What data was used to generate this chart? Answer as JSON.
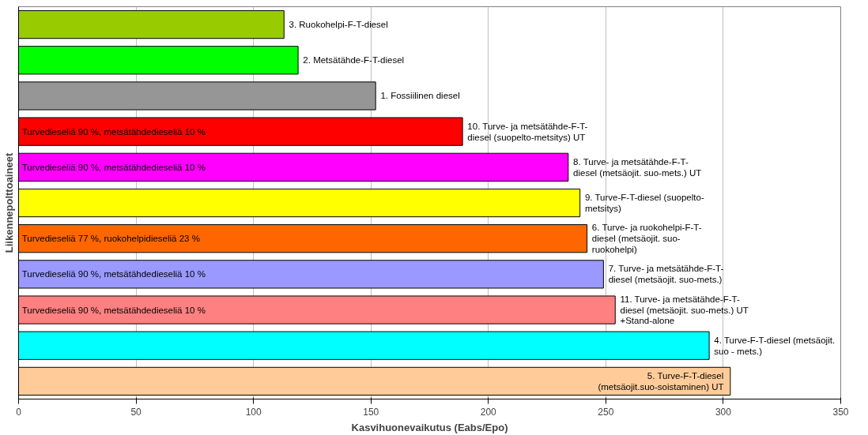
{
  "chart_data": {
    "type": "bar",
    "orientation": "horizontal",
    "xlabel": "Kasvihuonevaikutus (Eabs/Epo)",
    "ylabel": "Liikennepolttoaineet",
    "categories": [
      "3. Ruokohelpi-F-T-diesel",
      "2. Metsätähde-F-T-diesel",
      "1. Fossiilinen diesel",
      "10. Turve- ja metsätähde-F-T-diesel (suopelto-metsitys) UT",
      "8. Turve- ja metsätähde-F-T-diesel (metsäojit. suo-mets.) UT",
      "9. Turve-F-T-diesel (suopelto-metsitys)",
      "6. Turve- ja ruokohelpi-F-T-diesel (metsäojit. suo-ruokohelpi)",
      "7. Turve- ja metsätähde-F-T-diesel (metsäojit. suo-mets.)",
      "11. Turve- ja metsätähde-F-T-diesel (metsäojit. suo-mets.) UT +Stand-alone",
      "4. Turve-F-T-diesel (metsäojit. suo - mets.)",
      "5. Turve-F-T-diesel (metsäojit.suo-soistaminen) UT"
    ],
    "values": [
      113,
      119,
      152,
      189,
      234,
      239,
      242,
      249,
      254,
      294,
      303
    ],
    "colors": [
      "#99cc00",
      "#00ff00",
      "#969696",
      "#ff0000",
      "#ff00ff",
      "#ffff00",
      "#ff6600",
      "#9999ff",
      "#ff8080",
      "#00ffff",
      "#ffcc99"
    ],
    "xlim": [
      0,
      350
    ],
    "xticks": [
      0,
      50,
      100,
      150,
      200,
      250,
      300,
      350
    ],
    "grid": "x",
    "annotations": [
      {
        "text": "Turvedieseliä 90 %, metsätähdedieseliä 10 %",
        "y": "10. Turve- ja metsätähde-F-T-diesel (suopelto-metsitys) UT"
      },
      {
        "text": "Turvedieseliä 90 %, metsätähdedieseliä 10 %",
        "y": "8. Turve- ja metsätähde-F-T-diesel (metsäojit. suo-mets.) UT"
      },
      {
        "text": "Turvedieseliä 77 %, ruokohelpidieseliä 23 %",
        "y": "6. Turve- ja ruokohelpi-F-T-diesel (metsäojit. suo-ruokohelpi)"
      },
      {
        "text": "Turvedieseliä 90 %, metsätähdedieseliä 10 %",
        "y": "7. Turve- ja metsätähde-F-T-diesel (metsäojit. suo-mets.)"
      },
      {
        "text": "Turvedieseliä 90 %, metsätähdedieseliä 10 %",
        "y": "11. Turve- ja metsätähde-F-T-diesel (metsäojit. suo-mets.) UT +Stand-alone"
      }
    ]
  }
}
